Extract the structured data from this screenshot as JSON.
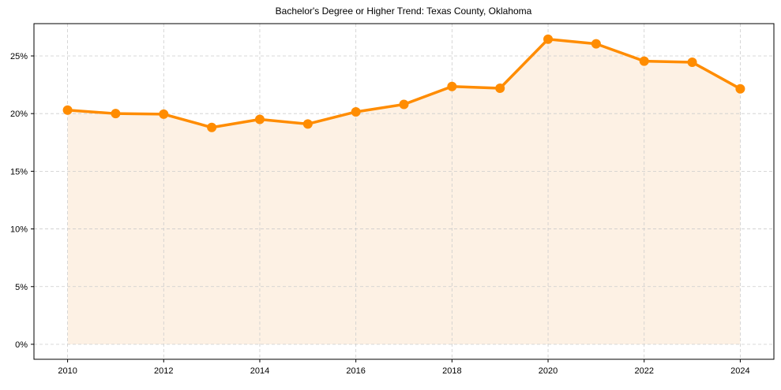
{
  "chart_data": {
    "type": "line",
    "title": "Bachelor's Degree or Higher Trend: Texas County, Oklahoma",
    "xlabel": "",
    "ylabel": "",
    "x": [
      2010,
      2011,
      2012,
      2013,
      2014,
      2015,
      2016,
      2017,
      2018,
      2019,
      2020,
      2021,
      2022,
      2023,
      2024
    ],
    "series": [
      {
        "name": "Bachelor's Degree or Higher",
        "values": [
          20.3,
          20.0,
          19.95,
          18.8,
          19.5,
          19.1,
          20.15,
          20.8,
          22.35,
          22.2,
          26.45,
          26.05,
          24.55,
          24.45,
          22.15
        ],
        "color": "#FF8C00",
        "fill": "area",
        "fill_color": "#FDF1E4",
        "markers": true
      }
    ],
    "xticks": [
      2010,
      2012,
      2014,
      2016,
      2018,
      2020,
      2022,
      2024
    ],
    "xtick_labels": [
      "2010",
      "2012",
      "2014",
      "2016",
      "2018",
      "2020",
      "2022",
      "2024"
    ],
    "yticks": [
      0,
      5,
      10,
      15,
      20,
      25
    ],
    "ytick_labels": [
      "0%",
      "5%",
      "10%",
      "15%",
      "20%",
      "25%"
    ],
    "xlim": [
      2009.3,
      2024.7
    ],
    "ylim": [
      -1.3,
      27.8
    ],
    "grid": true,
    "grid_style": "dashed",
    "legend": null
  },
  "colors": {
    "line": "#FF8C00",
    "fill": "#FDF1E4",
    "grid": "#CCCCCC",
    "axis": "#000000"
  }
}
